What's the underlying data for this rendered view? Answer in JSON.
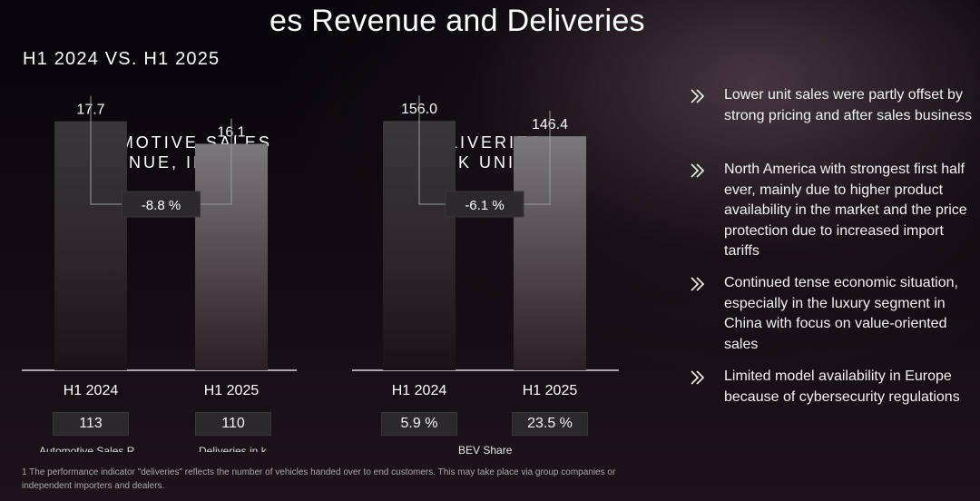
{
  "title": "es Revenue and Deliveries",
  "subtitle": "H1 2024 VS. H1 2025",
  "chart_data": [
    {
      "type": "bar",
      "title_lines": [
        "AUTOMOTIVE SALES",
        "REVENUE, IN € BN"
      ],
      "categories": [
        "H1 2024",
        "H1 2025"
      ],
      "values": [
        17.7,
        16.1
      ],
      "value_labels": [
        "17.7",
        "16.1"
      ],
      "change_label": "-8.8 %",
      "boxes": [
        "113",
        "110"
      ],
      "ylim": [
        0,
        20
      ]
    },
    {
      "type": "bar",
      "title_lines": [
        "DELIVERIES,",
        "IN K UNITS"
      ],
      "categories": [
        "H1 2024",
        "H1 2025"
      ],
      "values": [
        156.0,
        146.4
      ],
      "value_labels": [
        "156.0",
        "146.4"
      ],
      "change_label": "-6.1 %",
      "boxes": [
        "5.9 %",
        "23.5 %"
      ],
      "box_caption": "BEV Share",
      "ylim": [
        0,
        176
      ]
    }
  ],
  "clipped_captions": [
    "Automotive Sales R",
    "Deliveries in k"
  ],
  "bullets": [
    {
      "icon": "double-chevron-icon",
      "text": "Lower unit sales were partly offset by strong pricing and after sales business"
    },
    {
      "icon": "double-chevron-icon",
      "text": "North America with strongest first half ever, mainly due to higher product availability in the market and the price protection due to increased import tariffs"
    },
    {
      "icon": "double-chevron-icon",
      "text": "Continued tense economic situation, especially in the luxury segment in China with focus on value-oriented sales"
    },
    {
      "icon": "double-chevron-icon",
      "text": "Limited model availability in Europe because of cybersecurity regulations"
    }
  ],
  "footnote": "1 The performance indicator \"deliveries\" reflects the number of vehicles handed over to end customers. This may take place via group companies or independent importers and dealers."
}
